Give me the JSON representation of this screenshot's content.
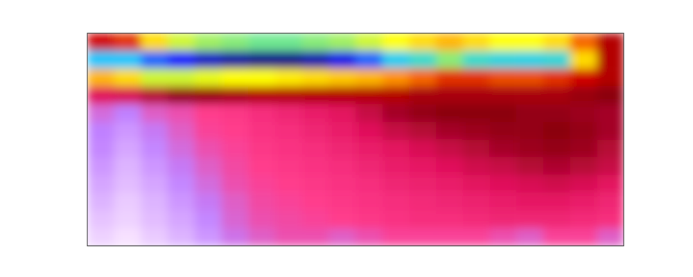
{
  "chart_data": {
    "type": "heatmap",
    "tick_labels": false,
    "zlim": [
      0,
      1
    ],
    "cells": [
      [
        0.5,
        0.48,
        0.4,
        0.36,
        0.34,
        0.33,
        0.32,
        0.32,
        0.33,
        0.34,
        0.36,
        0.38,
        0.4,
        0.42,
        0.4,
        0.38,
        0.38,
        0.4,
        0.46,
        0.52
      ],
      [
        0.2,
        0.2,
        0.15,
        0.1,
        0.05,
        0.02,
        0.0,
        0.0,
        0.03,
        0.08,
        0.15,
        0.22,
        0.28,
        0.33,
        0.28,
        0.25,
        0.24,
        0.26,
        0.4,
        0.52
      ],
      [
        0.42,
        0.4,
        0.36,
        0.36,
        0.37,
        0.38,
        0.38,
        0.39,
        0.4,
        0.41,
        0.42,
        0.44,
        0.46,
        0.48,
        0.48,
        0.47,
        0.47,
        0.48,
        0.5,
        0.52
      ],
      [
        0.65,
        0.64,
        0.6,
        0.56,
        0.54,
        0.53,
        0.52,
        0.52,
        0.52,
        0.52,
        0.52,
        0.52,
        0.53,
        0.53,
        0.53,
        0.53,
        0.53,
        0.53,
        0.54,
        0.55
      ],
      [
        0.82,
        0.85,
        0.8,
        0.78,
        0.75,
        0.74,
        0.72,
        0.7,
        0.68,
        0.66,
        0.62,
        0.58,
        0.56,
        0.55,
        0.55,
        0.55,
        0.56,
        0.56,
        0.57,
        0.58
      ],
      [
        0.85,
        0.88,
        0.84,
        0.8,
        0.76,
        0.75,
        0.73,
        0.72,
        0.7,
        0.68,
        0.65,
        0.62,
        0.6,
        0.58,
        0.57,
        0.56,
        0.56,
        0.55,
        0.56,
        0.58
      ],
      [
        0.86,
        0.9,
        0.86,
        0.82,
        0.78,
        0.76,
        0.74,
        0.73,
        0.72,
        0.7,
        0.68,
        0.66,
        0.64,
        0.62,
        0.6,
        0.58,
        0.57,
        0.56,
        0.57,
        0.6
      ],
      [
        0.88,
        0.92,
        0.88,
        0.84,
        0.8,
        0.77,
        0.75,
        0.74,
        0.73,
        0.72,
        0.7,
        0.68,
        0.67,
        0.65,
        0.63,
        0.62,
        0.6,
        0.59,
        0.6,
        0.62
      ],
      [
        0.9,
        0.93,
        0.9,
        0.86,
        0.82,
        0.78,
        0.76,
        0.75,
        0.74,
        0.73,
        0.72,
        0.7,
        0.69,
        0.68,
        0.66,
        0.65,
        0.64,
        0.63,
        0.64,
        0.66
      ],
      [
        0.92,
        0.95,
        0.92,
        0.88,
        0.84,
        0.8,
        0.77,
        0.76,
        0.75,
        0.74,
        0.73,
        0.72,
        0.71,
        0.7,
        0.69,
        0.68,
        0.67,
        0.67,
        0.68,
        0.7
      ],
      [
        0.94,
        0.96,
        0.93,
        0.9,
        0.86,
        0.81,
        0.78,
        0.77,
        0.76,
        0.75,
        0.74,
        0.73,
        0.72,
        0.72,
        0.71,
        0.7,
        0.7,
        0.7,
        0.71,
        0.72
      ],
      [
        0.96,
        0.98,
        0.95,
        0.92,
        0.88,
        0.83,
        0.8,
        0.78,
        0.78,
        0.8,
        0.78,
        0.76,
        0.76,
        0.76,
        0.76,
        0.78,
        0.8,
        0.76,
        0.76,
        0.8
      ]
    ]
  }
}
